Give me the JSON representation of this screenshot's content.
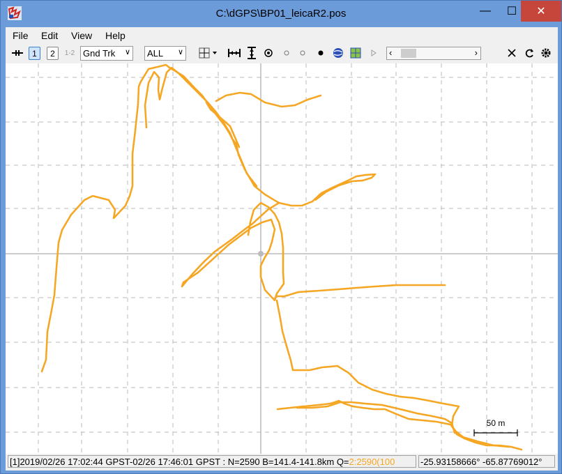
{
  "window": {
    "title": "C:\\dGPS\\BP01_leicaR2.pos",
    "min_glyph": "—",
    "max_glyph": "☐",
    "close_glyph": "✕"
  },
  "menu": [
    "File",
    "Edit",
    "View",
    "Help"
  ],
  "toolbar": {
    "sol1_label": "1",
    "sol2_label": "2",
    "sol12_label": "1-2",
    "plot_type": "Gnd Trk",
    "quality": "ALL"
  },
  "scale_bar": {
    "label": "50 m"
  },
  "status": {
    "left_text": "[1]2019/02/26 17:02:44 GPST-02/26 17:46:01 GPST : N=2590 B=141.4-141.8km Q=",
    "q_text": "2:2590(100",
    "coords": "-25.93158666°  -65.87769012°"
  },
  "colors": {
    "track": "#f5a623",
    "grid": "#b8b8b8",
    "axis": "#9a9a9a"
  }
}
